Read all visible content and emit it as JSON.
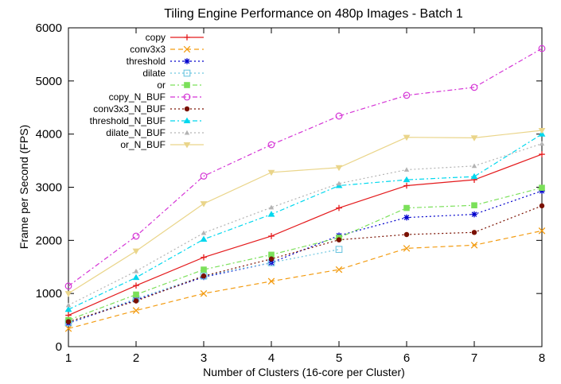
{
  "chart_data": {
    "type": "line",
    "title": "Tiling Engine Performance on 480p Images - Batch 1",
    "xlabel": "Number of Clusters (16-core per Cluster)",
    "ylabel": "Frame per Second (FPS)",
    "xlim": [
      1,
      8
    ],
    "ylim": [
      0,
      6000
    ],
    "x_ticks": [
      1,
      2,
      3,
      4,
      5,
      6,
      7,
      8
    ],
    "y_ticks": [
      0,
      1000,
      2000,
      3000,
      4000,
      5000,
      6000
    ],
    "grid": false,
    "legend_position": "top-left",
    "series": [
      {
        "name": "copy",
        "color": "#e41a1c",
        "marker": "plus",
        "dash": "solid",
        "x": [
          1,
          2,
          3,
          4,
          5,
          6,
          7,
          8
        ],
        "values": [
          590,
          1150,
          1680,
          2080,
          2610,
          3030,
          3140,
          3620
        ]
      },
      {
        "name": "conv3x3",
        "color": "#f39c12",
        "marker": "x",
        "dash": "dashed",
        "x": [
          1,
          2,
          3,
          4,
          5,
          6,
          7,
          8
        ],
        "values": [
          340,
          680,
          1000,
          1230,
          1450,
          1850,
          1910,
          2180
        ]
      },
      {
        "name": "threshold",
        "color": "#0000cc",
        "marker": "star",
        "dash": "dotted",
        "x": [
          1,
          2,
          3,
          4,
          5,
          6,
          7,
          8
        ],
        "values": [
          440,
          880,
          1310,
          1580,
          2090,
          2430,
          2490,
          2930
        ]
      },
      {
        "name": "dilate",
        "color": "#6ec6e0",
        "marker": "square-open",
        "dash": "dotted",
        "x": [
          1,
          2,
          3,
          4,
          5
        ],
        "values": [
          450,
          900,
          1330,
          1580,
          1830
        ]
      },
      {
        "name": "or",
        "color": "#7be05a",
        "marker": "square-filled",
        "dash": "dashdot",
        "x": [
          1,
          2,
          3,
          4,
          5,
          6,
          7,
          8
        ],
        "values": [
          500,
          980,
          1450,
          1730,
          2050,
          2610,
          2660,
          2990
        ]
      },
      {
        "name": "copy_N_BUF",
        "color": "#d535d6",
        "marker": "circle-open",
        "dash": "dashdot",
        "x": [
          1,
          2,
          3,
          4,
          5,
          6,
          7,
          8
        ],
        "values": [
          1140,
          2080,
          3210,
          3800,
          4340,
          4730,
          4880,
          5610
        ]
      },
      {
        "name": "conv3x3_N_BUF",
        "color": "#7a1000",
        "marker": "circle-filled",
        "dash": "dotted",
        "x": [
          1,
          2,
          3,
          4,
          5,
          6,
          7,
          8
        ],
        "values": [
          470,
          860,
          1330,
          1650,
          2010,
          2110,
          2150,
          2650
        ]
      },
      {
        "name": "threshold_N_BUF",
        "color": "#00d8ee",
        "marker": "triangle-up",
        "dash": "dashdot",
        "x": [
          1,
          2,
          3,
          4,
          5,
          6,
          7,
          8
        ],
        "values": [
          700,
          1300,
          2020,
          2490,
          3030,
          3140,
          3200,
          4000
        ]
      },
      {
        "name": "dilate_N_BUF",
        "color": "#b3b3b3",
        "marker": "triangle-up-small",
        "dash": "dotted",
        "x": [
          1,
          2,
          3,
          4,
          5,
          6,
          7,
          8
        ],
        "values": [
          780,
          1420,
          2140,
          2620,
          3070,
          3330,
          3400,
          3820
        ]
      },
      {
        "name": "or_N_BUF",
        "color": "#ead58a",
        "marker": "triangle-down",
        "dash": "solid",
        "x": [
          1,
          2,
          3,
          4,
          5,
          6,
          7,
          8
        ],
        "values": [
          1000,
          1800,
          2690,
          3280,
          3370,
          3940,
          3930,
          4070
        ]
      }
    ]
  }
}
